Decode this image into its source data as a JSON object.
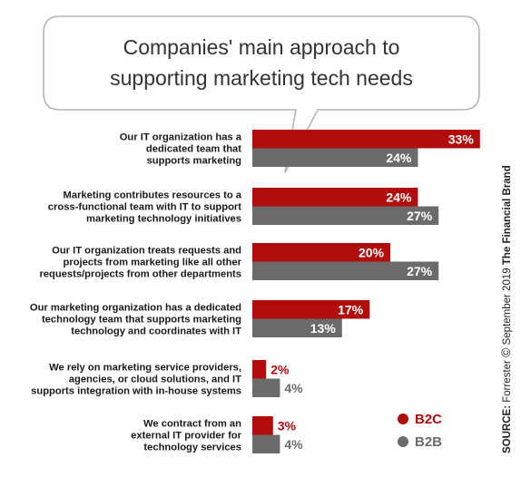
{
  "chart_data": {
    "type": "bar",
    "orientation": "horizontal",
    "title": "Companies' main approach to supporting marketing tech needs",
    "categories": [
      "Our IT organization has a dedicated team that supports marketing",
      "Marketing contributes resources to a cross-functional team with IT to support marketing technology initiatives",
      "Our IT organization treats requests and projects from marketing like all other requests/projects from other departments",
      "Our marketing organization has a dedicated technology team that supports marketing technology and coordinates with IT",
      "We rely on marketing service providers, agencies, or cloud solutions, and IT supports integration with in-house systems",
      "We contract from an external IT provider for technology services"
    ],
    "category_lines": [
      [
        "Our IT organization has a",
        "dedicated team that",
        "supports marketing"
      ],
      [
        "Marketing contributes resources to a",
        "cross-functional team with IT to support",
        "marketing technology initiatives"
      ],
      [
        "Our IT organization treats requests and",
        "projects from marketing like all other",
        "requests/projects from other departments"
      ],
      [
        "Our marketing organization has a dedicated",
        "technology team that supports marketing",
        "technology and coordinates with IT"
      ],
      [
        "We rely on marketing service providers,",
        "agencies, or cloud solutions, and IT",
        "supports integration with in-house systems"
      ],
      [
        "We contract from an",
        "external IT provider for",
        "technology services"
      ]
    ],
    "series": [
      {
        "name": "B2C",
        "values": [
          33,
          24,
          20,
          17,
          2,
          3
        ],
        "color": "#b10d0d"
      },
      {
        "name": "B2B",
        "values": [
          24,
          27,
          27,
          13,
          4,
          4
        ],
        "color": "#6b6b6b"
      }
    ],
    "unit": "%",
    "xlim": [
      0,
      33
    ],
    "grid": false,
    "legend_position": "bottom-right"
  },
  "source": {
    "label": "SOURCE:",
    "text": " Forrester ",
    "copyright": "©",
    "date": " September 2019 ",
    "brand": "The Financial Brand"
  }
}
